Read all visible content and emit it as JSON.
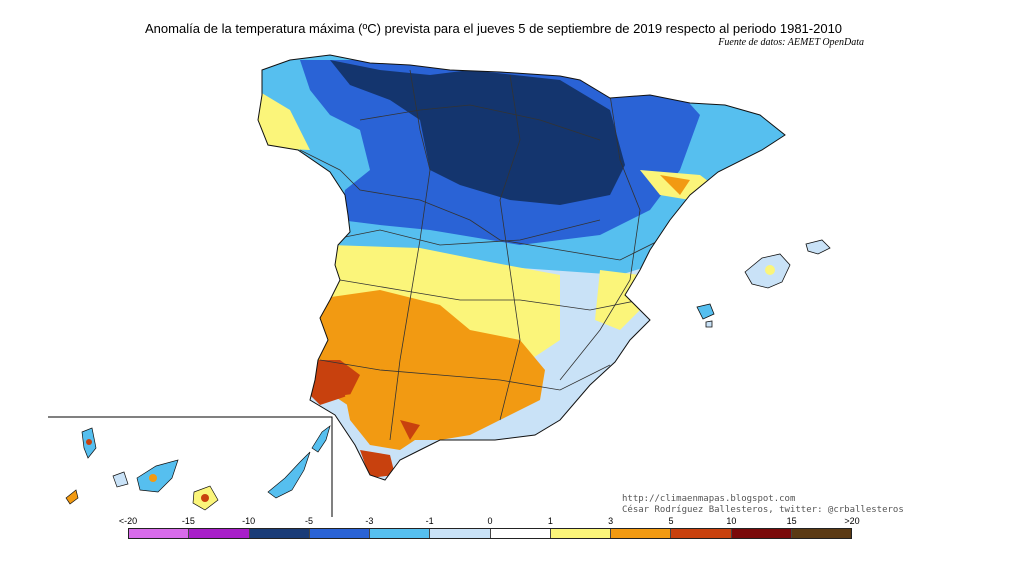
{
  "title": "Anomalía de la temperatura máxima (ºC) prevista para el jueves 5 de septiembre de 2019 respecto al periodo 1981-2010",
  "source": "Fuente de datos: AEMET OpenData",
  "credits": {
    "url": "http://climaenmapas.blogspot.com",
    "author": "César Rodríguez Ballesteros, twitter: @crballesteros"
  },
  "legend": {
    "labels": [
      "<-20",
      "-15",
      "-10",
      "-5",
      "-3",
      "-1",
      "0",
      "1",
      "3",
      "5",
      "10",
      "15",
      ">20"
    ],
    "colors": [
      "#d86bea",
      "#a81fc9",
      "#1a3c78",
      "#2a63d6",
      "#56bfef",
      "#c9e2f7",
      "#ffffff",
      "#fbf57a",
      "#f29a12",
      "#c8410e",
      "#7a0a0a",
      "#5b3a14"
    ]
  },
  "palette": {
    "deep_blue": "#14356e",
    "blue": "#2a63d6",
    "light_blue": "#56bfef",
    "pale_blue": "#c9e2f7",
    "white": "#ffffff",
    "yellow": "#fbf57a",
    "orange": "#f29a12",
    "red_orange": "#c8410e"
  }
}
